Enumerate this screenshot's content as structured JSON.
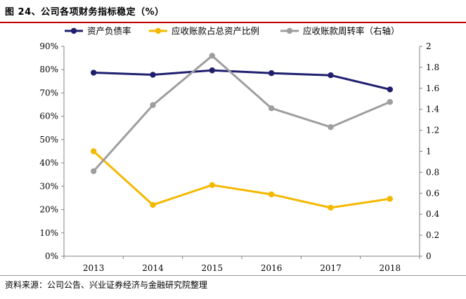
{
  "title": "图 24、公司各项财务指标稳定（%）",
  "source": "资料来源：公司公告、兴业证券经济与金融研究院整理",
  "colors": {
    "title_rule": "#c00000",
    "series": [
      "#1f1f6e",
      "#f5b800",
      "#9e9e9e"
    ],
    "axis": "#808080"
  },
  "chart_data": {
    "type": "line",
    "categories": [
      "2013",
      "2014",
      "2015",
      "2016",
      "2017",
      "2018"
    ],
    "series": [
      {
        "name": "资产负债率",
        "axis": "left",
        "values": [
          78.7,
          77.8,
          79.7,
          78.5,
          77.6,
          71.5
        ]
      },
      {
        "name": "应收账款占总资产比例",
        "axis": "left",
        "values": [
          45.0,
          22.0,
          30.5,
          26.5,
          20.8,
          24.6
        ]
      },
      {
        "name": "应收账款周转率（右轴）",
        "axis": "right",
        "values": [
          0.81,
          1.44,
          1.91,
          1.41,
          1.23,
          1.47
        ]
      }
    ],
    "y_left": {
      "range": [
        0,
        90
      ],
      "ticks": [
        "0%",
        "10%",
        "20%",
        "30%",
        "40%",
        "50%",
        "60%",
        "70%",
        "80%",
        "90%"
      ]
    },
    "y_right": {
      "range": [
        0,
        2
      ],
      "ticks": [
        "0",
        "0.2",
        "0.4",
        "0.6",
        "0.8",
        "1",
        "1.2",
        "1.4",
        "1.6",
        "1.8",
        "2"
      ]
    },
    "grid": false,
    "legend": "top"
  }
}
